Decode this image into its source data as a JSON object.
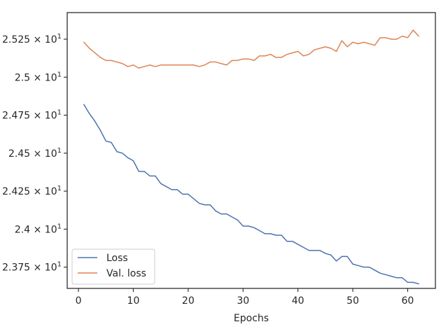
{
  "chart_data": {
    "type": "line",
    "title": "",
    "xlabel": "Epochs",
    "ylabel": "",
    "xlim": [
      -2.05,
      65.05
    ],
    "ylim": [
      23.61,
      25.425
    ],
    "grid": false,
    "legend_position": "lower-left",
    "x_ticks": [
      0,
      10,
      20,
      30,
      40,
      50,
      60
    ],
    "x_tick_labels": [
      "0",
      "10",
      "20",
      "30",
      "40",
      "50",
      "60"
    ],
    "y_ticks": [
      23.75,
      24.0,
      24.25,
      24.5,
      24.75,
      25.0,
      25.25
    ],
    "y_tick_labels": [
      {
        "base": "2.375",
        "mult": "× 10",
        "exp": "1"
      },
      {
        "base": "2.4",
        "mult": "× 10",
        "exp": "1"
      },
      {
        "base": "2.425",
        "mult": "× 10",
        "exp": "1"
      },
      {
        "base": "2.45",
        "mult": "× 10",
        "exp": "1"
      },
      {
        "base": "2.475",
        "mult": "× 10",
        "exp": "1"
      },
      {
        "base": "2.5",
        "mult": "× 10",
        "exp": "1"
      },
      {
        "base": "2.525",
        "mult": "× 10",
        "exp": "1"
      }
    ],
    "x": [
      1,
      2,
      3,
      4,
      5,
      6,
      7,
      8,
      9,
      10,
      11,
      12,
      13,
      14,
      15,
      16,
      17,
      18,
      19,
      20,
      21,
      22,
      23,
      24,
      25,
      26,
      27,
      28,
      29,
      30,
      31,
      32,
      33,
      34,
      35,
      36,
      37,
      38,
      39,
      40,
      41,
      42,
      43,
      44,
      45,
      46,
      47,
      48,
      49,
      50,
      51,
      52,
      53,
      54,
      55,
      56,
      57,
      58,
      59,
      60,
      61,
      62
    ],
    "series": [
      {
        "name": "Loss",
        "color": "#4c72b0",
        "values": [
          24.82,
          24.76,
          24.71,
          24.65,
          24.58,
          24.57,
          24.51,
          24.5,
          24.47,
          24.45,
          24.38,
          24.38,
          24.35,
          24.35,
          24.3,
          24.28,
          24.26,
          24.26,
          24.23,
          24.23,
          24.2,
          24.17,
          24.16,
          24.16,
          24.12,
          24.1,
          24.1,
          24.08,
          24.06,
          24.02,
          24.02,
          24.01,
          23.99,
          23.97,
          23.97,
          23.96,
          23.96,
          23.92,
          23.92,
          23.9,
          23.88,
          23.86,
          23.86,
          23.86,
          23.84,
          23.83,
          23.79,
          23.82,
          23.82,
          23.77,
          23.76,
          23.75,
          23.75,
          23.73,
          23.71,
          23.7,
          23.69,
          23.68,
          23.68,
          23.65,
          23.65,
          23.64
        ]
      },
      {
        "name": "Val. loss",
        "color": "#dd8452",
        "values": [
          25.23,
          25.19,
          25.16,
          25.13,
          25.11,
          25.11,
          25.1,
          25.09,
          25.07,
          25.08,
          25.06,
          25.07,
          25.08,
          25.07,
          25.08,
          25.08,
          25.08,
          25.08,
          25.08,
          25.08,
          25.08,
          25.07,
          25.08,
          25.1,
          25.1,
          25.09,
          25.08,
          25.11,
          25.11,
          25.12,
          25.12,
          25.11,
          25.14,
          25.14,
          25.15,
          25.13,
          25.13,
          25.15,
          25.16,
          25.17,
          25.14,
          25.15,
          25.18,
          25.19,
          25.2,
          25.19,
          25.17,
          25.24,
          25.2,
          25.23,
          25.22,
          25.23,
          25.22,
          25.21,
          25.26,
          25.26,
          25.25,
          25.25,
          25.27,
          25.26,
          25.31,
          25.27
        ]
      }
    ]
  }
}
